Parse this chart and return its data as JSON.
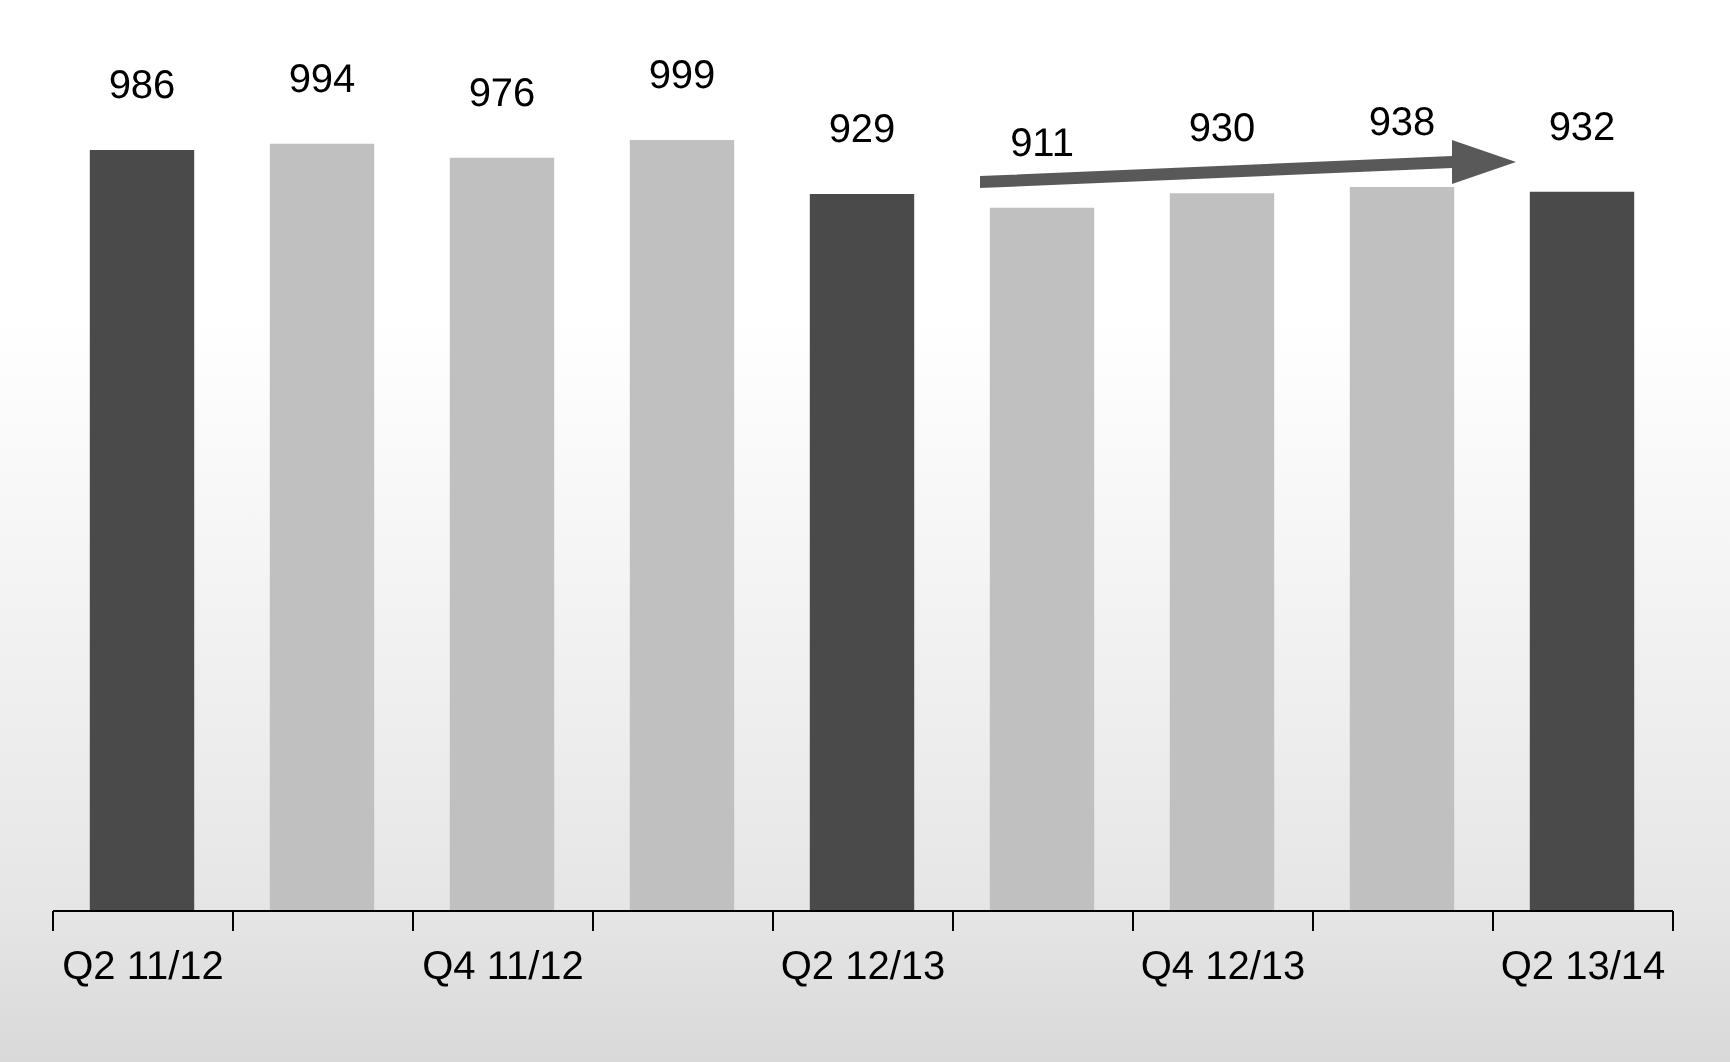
{
  "chart_data": {
    "type": "bar",
    "categories": [
      "Q2 11/12",
      null,
      "Q4 11/12",
      null,
      "Q2 12/13",
      null,
      "Q4 12/13",
      null,
      "Q2 13/14"
    ],
    "values": [
      986,
      994,
      976,
      999,
      929,
      911,
      930,
      938,
      932
    ],
    "colors": [
      "#4a4a4a",
      "#c0c0c0",
      "#c0c0c0",
      "#c0c0c0",
      "#4a4a4a",
      "#c0c0c0",
      "#c0c0c0",
      "#c0c0c0",
      "#4a4a4a"
    ],
    "data_labels": true
  }
}
